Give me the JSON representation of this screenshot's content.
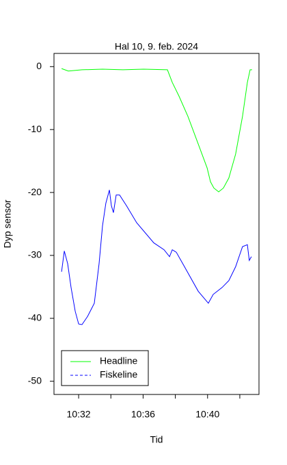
{
  "chart_data": {
    "type": "line",
    "title": "Hal 10, 9. feb. 2024",
    "x_label": "Tid",
    "y_label": "Dyp sensor",
    "xlim": [
      30.47,
      43.19
    ],
    "ylim": [
      -52.1,
      2.1
    ],
    "xticks": [
      {
        "value": 32,
        "label": "10:32"
      },
      {
        "value": 34,
        "label": null
      },
      {
        "value": 36,
        "label": "10:36"
      },
      {
        "value": 38,
        "label": null
      },
      {
        "value": 40,
        "label": "10:40"
      },
      {
        "value": 42,
        "label": null
      }
    ],
    "yticks": [
      0,
      -10,
      -20,
      -30,
      -40,
      -50
    ],
    "legend": "bottom-left",
    "series": [
      {
        "name": "Headline",
        "color": "#00ff00",
        "legend_linestyle": "solid",
        "x": [
          30.94,
          31.36,
          32.21,
          33.48,
          34.75,
          36.03,
          37.51,
          37.81,
          38.23,
          38.78,
          39.42,
          39.97,
          40.18,
          40.39,
          40.69,
          40.98,
          41.32,
          41.74,
          42.17,
          42.47,
          42.64,
          42.76
        ],
        "values": [
          -0.3,
          -0.7,
          -0.5,
          -0.4,
          -0.5,
          -0.4,
          -0.5,
          -2.5,
          -4.7,
          -7.9,
          -12.3,
          -16.1,
          -18.3,
          -19.3,
          -19.9,
          -19.3,
          -17.7,
          -13.9,
          -7.9,
          -2.5,
          -0.5,
          -0.5
        ]
      },
      {
        "name": "Fiskeline",
        "color": "#0000ff",
        "legend_linestyle": "dashed",
        "x": [
          30.94,
          31.11,
          31.32,
          31.53,
          31.79,
          32,
          32.21,
          32.55,
          32.97,
          33.27,
          33.48,
          33.69,
          33.91,
          34.03,
          34.16,
          34.33,
          34.54,
          34.97,
          35.6,
          36.66,
          37.3,
          37.64,
          37.81,
          38.06,
          38.57,
          39.42,
          40.05,
          40.35,
          40.9,
          41.32,
          41.74,
          42.17,
          42.47,
          42.59,
          42.72
        ],
        "values": [
          -32.6,
          -29.3,
          -31.3,
          -35.1,
          -38.9,
          -40.9,
          -41,
          -39.7,
          -37.6,
          -31.3,
          -25.3,
          -21.7,
          -19.6,
          -22.1,
          -23.2,
          -20.4,
          -20.4,
          -22.1,
          -24.8,
          -28,
          -29.1,
          -30.2,
          -29.1,
          -29.5,
          -31.8,
          -35.7,
          -37.6,
          -36.2,
          -35.1,
          -34,
          -31.8,
          -28.6,
          -28.3,
          -30.8,
          -30.2
        ]
      }
    ]
  }
}
